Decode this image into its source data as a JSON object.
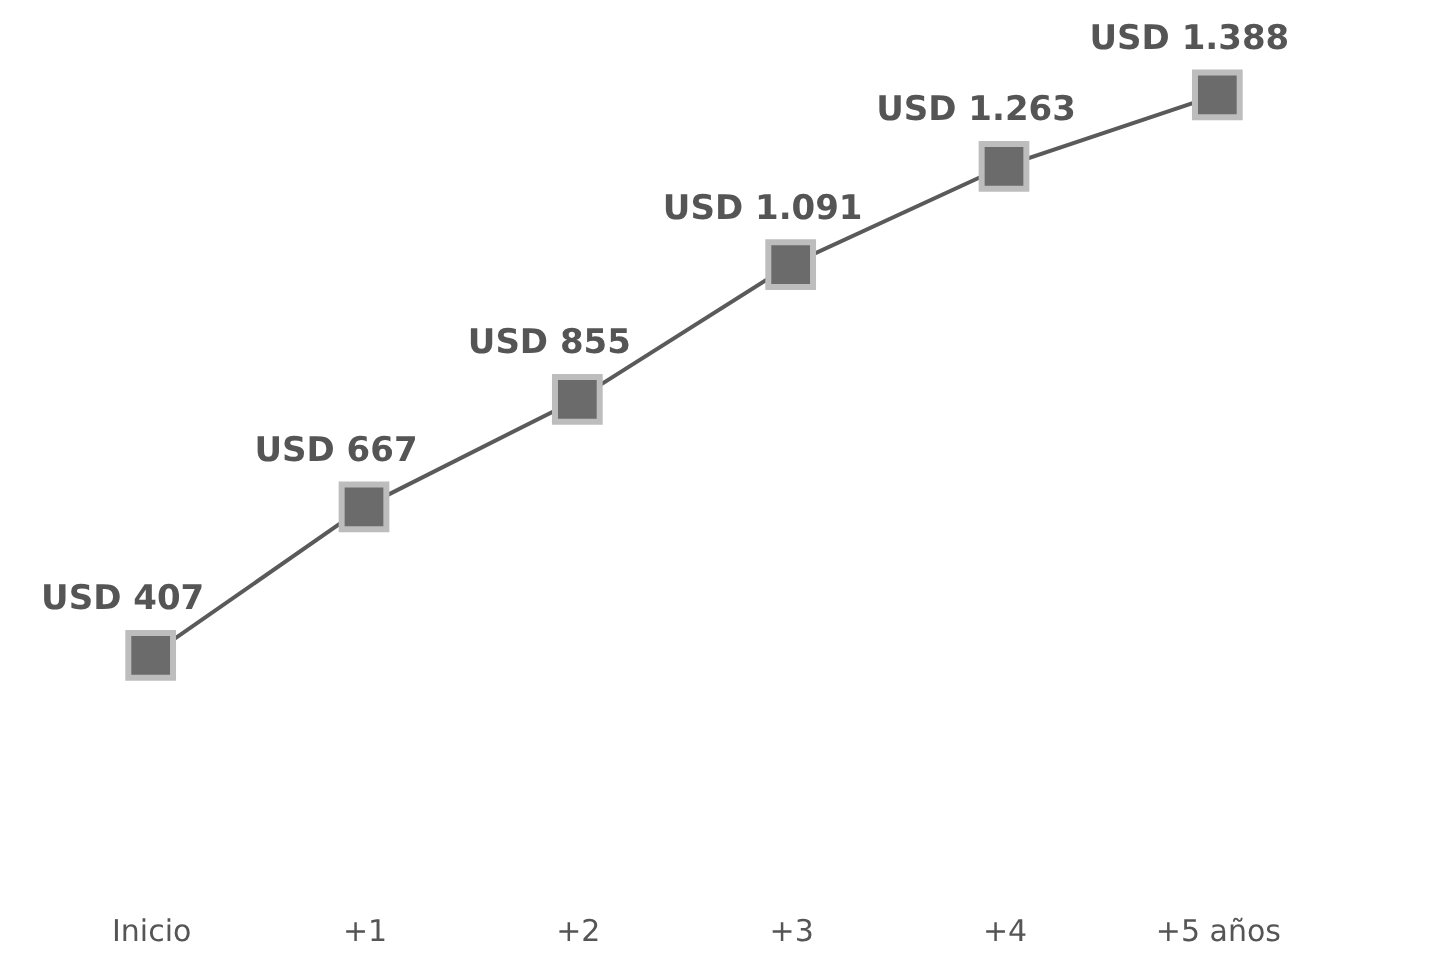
{
  "chart_data": {
    "type": "line",
    "categories": [
      "Inicio",
      "+1",
      "+2",
      "+3",
      "+4",
      "+5 años"
    ],
    "series": [
      {
        "color": "#5a5a5a",
        "values": [
          407,
          667,
          855,
          1091,
          1263,
          1388
        ],
        "value_labels": [
          "USD 407",
          "USD 667",
          "USD 855",
          "USD 1.091",
          "USD 1.263",
          "USD 1.388"
        ]
      }
    ],
    "marker": "square",
    "line_style": "solid",
    "grid": false,
    "tick_labels": "x"
  }
}
